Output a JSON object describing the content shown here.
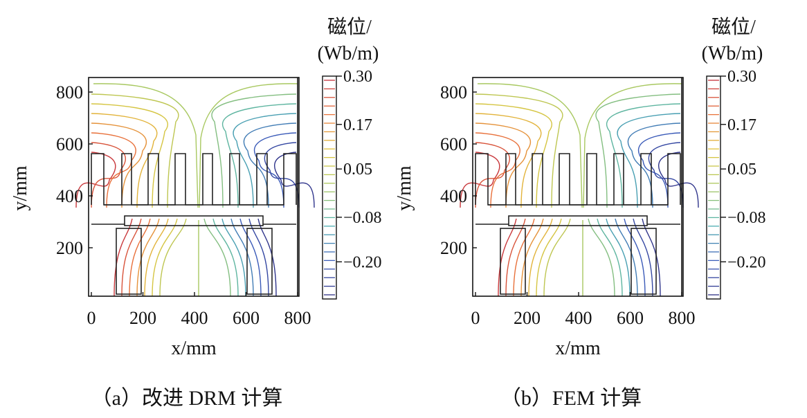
{
  "figure": {
    "panels": [
      {
        "caption": "（a）改进 DRM 计算",
        "colorbar_title_line1": "磁位/",
        "colorbar_title_line2": "(Wb/m)"
      },
      {
        "caption": "（b）FEM 计算",
        "colorbar_title_line1": "磁位/",
        "colorbar_title_line2": "(Wb/m)"
      }
    ]
  },
  "chart_data": [
    {
      "type": "contour",
      "title": "（a）改进 DRM 计算",
      "xlabel": "x/mm",
      "ylabel": "y/mm",
      "xlim": [
        0,
        800
      ],
      "ylim": [
        0,
        850
      ],
      "x_ticks": [
        "0",
        "200",
        "400",
        "600",
        "800"
      ],
      "y_ticks": [
        "200",
        "400",
        "600",
        "800"
      ],
      "colorbar": {
        "title": "磁位/(Wb/m)",
        "range": [
          -0.3,
          0.3
        ],
        "tick_labels": [
          "0.30",
          "0.17",
          "0.05",
          "−0.08",
          "−0.20"
        ],
        "tick_values": [
          0.3,
          0.17,
          0.05,
          -0.08,
          -0.2
        ]
      },
      "contour_levels": [
        0.28,
        0.24,
        0.2,
        0.16,
        0.12,
        0.08,
        0.04,
        0.0,
        -0.04,
        -0.08,
        -0.12,
        -0.16,
        -0.2,
        -0.24,
        -0.28
      ]
    },
    {
      "type": "contour",
      "title": "（b）FEM 计算",
      "xlabel": "x/mm",
      "ylabel": "y/mm",
      "xlim": [
        0,
        800
      ],
      "ylim": [
        0,
        850
      ],
      "x_ticks": [
        "0",
        "200",
        "400",
        "600",
        "800"
      ],
      "y_ticks": [
        "200",
        "400",
        "600",
        "800"
      ],
      "colorbar": {
        "title": "磁位/(Wb/m)",
        "range": [
          -0.3,
          0.3
        ],
        "tick_labels": [
          "0.30",
          "0.17",
          "0.05",
          "−0.08",
          "−0.20"
        ],
        "tick_values": [
          0.3,
          0.17,
          0.05,
          -0.08,
          -0.2
        ]
      },
      "contour_levels": [
        0.28,
        0.24,
        0.2,
        0.16,
        0.12,
        0.08,
        0.04,
        0.0,
        -0.04,
        -0.08,
        -0.12,
        -0.16,
        -0.2,
        -0.24,
        -0.28
      ]
    }
  ]
}
